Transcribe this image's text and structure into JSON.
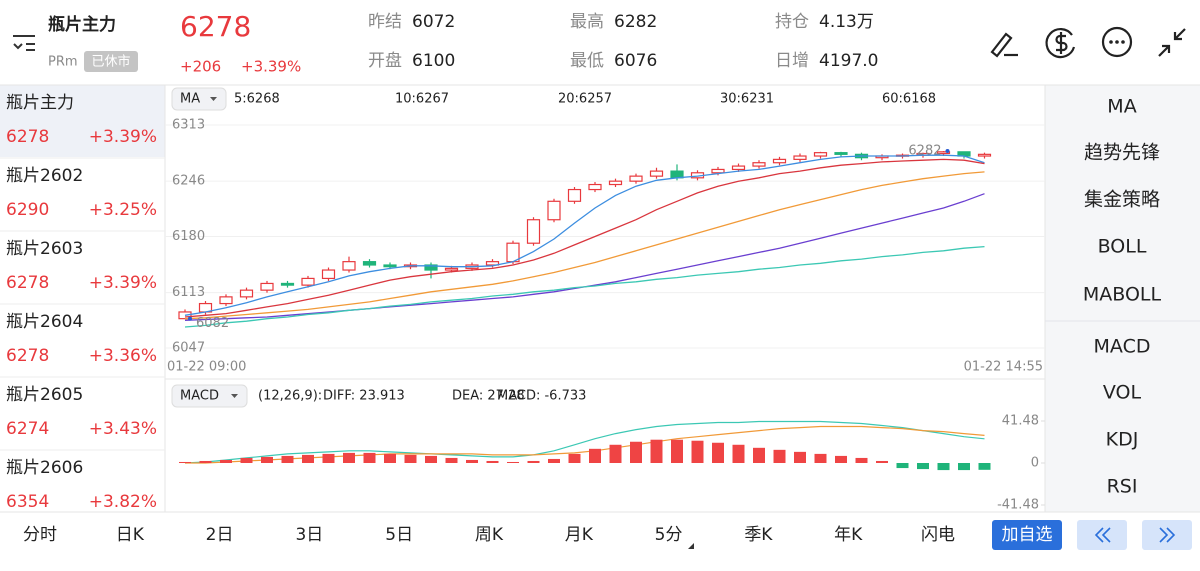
{
  "header": {
    "name": "瓶片主力",
    "code": "PRm",
    "status": "已休市",
    "price": 6278,
    "change": "+206",
    "change_pct": "+3.39%",
    "stats": [
      {
        "label": "昨结",
        "value": 6072,
        "color": "#333333"
      },
      {
        "label": "开盘",
        "value": 6100,
        "color": "#e8393d"
      },
      {
        "label": "最高",
        "value": 6282,
        "color": "#e8393d"
      },
      {
        "label": "最低",
        "value": 6076,
        "color": "#e8393d"
      },
      {
        "label": "持仓",
        "value": "4.13万",
        "color": "#333333"
      },
      {
        "label": "日增",
        "value": "4197.0",
        "color": "#333333"
      }
    ]
  },
  "contracts": [
    {
      "name": "瓶片主力",
      "price": 6278,
      "change_pct": "+3.39%"
    },
    {
      "name": "瓶片2602",
      "price": 6290,
      "change_pct": "+3.25%"
    },
    {
      "name": "瓶片2603",
      "price": 6278,
      "change_pct": "+3.39%"
    },
    {
      "name": "瓶片2604",
      "price": 6278,
      "change_pct": "+3.36%"
    },
    {
      "name": "瓶片2605",
      "price": 6274,
      "change_pct": "+3.43%"
    },
    {
      "name": "瓶片2606",
      "price": 6354,
      "change_pct": "+3.82%"
    }
  ],
  "chart_data": [
    {
      "type": "candlestick",
      "legend_button": "MA",
      "x_labels": [
        "01-22 09:00",
        "01-22 14:55"
      ],
      "up_color": "#e8393d",
      "down_color": "#1fb47a",
      "ylim": [
        6047,
        6313
      ],
      "yticks": [
        6313,
        6246,
        6180,
        6113,
        6047
      ],
      "grid": true,
      "open": [
        6082,
        6090,
        6100,
        6108,
        6116,
        6124,
        6122,
        6130,
        6140,
        6150,
        6146,
        6144,
        6146,
        6140,
        6142,
        6146,
        6150,
        6172,
        6200,
        6222,
        6236,
        6242,
        6246,
        6252,
        6258,
        6250,
        6256,
        6260,
        6264,
        6268,
        6272,
        6276,
        6280,
        6278,
        6274,
        6276,
        6277,
        6279,
        6281,
        6276
      ],
      "high": [
        6093,
        6103,
        6111,
        6119,
        6127,
        6127,
        6133,
        6143,
        6156,
        6153,
        6149,
        6149,
        6149,
        6145,
        6149,
        6153,
        6175,
        6203,
        6225,
        6239,
        6245,
        6249,
        6255,
        6262,
        6266,
        6259,
        6263,
        6267,
        6271,
        6275,
        6279,
        6281,
        6281,
        6280,
        6278,
        6279,
        6280,
        6282,
        6281,
        6280
      ],
      "low": [
        6082,
        6087,
        6097,
        6105,
        6113,
        6119,
        6119,
        6127,
        6137,
        6143,
        6141,
        6141,
        6130,
        6137,
        6139,
        6143,
        6147,
        6169,
        6197,
        6219,
        6233,
        6239,
        6243,
        6249,
        6247,
        6247,
        6253,
        6257,
        6261,
        6265,
        6269,
        6273,
        6275,
        6271,
        6271,
        6273,
        6274,
        6276,
        6273,
        6273
      ],
      "close": [
        6090,
        6100,
        6108,
        6116,
        6124,
        6122,
        6130,
        6140,
        6150,
        6146,
        6144,
        6146,
        6140,
        6142,
        6146,
        6150,
        6172,
        6200,
        6222,
        6236,
        6242,
        6246,
        6252,
        6258,
        6250,
        6256,
        6260,
        6264,
        6268,
        6272,
        6276,
        6280,
        6278,
        6274,
        6276,
        6277,
        6279,
        6281,
        6276,
        6278
      ],
      "series": [
        {
          "name": "5:6268",
          "color": "#3d8ee0",
          "values": [
            6086,
            6090,
            6095,
            6101,
            6108,
            6114,
            6120,
            6126,
            6133,
            6138,
            6142,
            6145,
            6145,
            6144,
            6144,
            6145,
            6150,
            6162,
            6177,
            6196,
            6214,
            6229,
            6240,
            6247,
            6250,
            6252,
            6255,
            6258,
            6260,
            6264,
            6268,
            6272,
            6275,
            6276,
            6276,
            6276,
            6277,
            6277,
            6276,
            6268
          ]
        },
        {
          "name": "10:6267",
          "color": "#d9363e",
          "values": [
            6084,
            6086,
            6088,
            6092,
            6096,
            6100,
            6105,
            6110,
            6116,
            6122,
            6128,
            6132,
            6135,
            6138,
            6140,
            6142,
            6146,
            6152,
            6160,
            6170,
            6180,
            6190,
            6200,
            6212,
            6222,
            6232,
            6240,
            6246,
            6250,
            6255,
            6258,
            6262,
            6265,
            6267,
            6269,
            6270,
            6271,
            6272,
            6271,
            6267
          ]
        },
        {
          "name": "20:6257",
          "color": "#f19a38",
          "values": [
            6082,
            6083,
            6085,
            6087,
            6089,
            6091,
            6093,
            6096,
            6099,
            6102,
            6106,
            6110,
            6114,
            6117,
            6120,
            6123,
            6127,
            6132,
            6137,
            6143,
            6149,
            6156,
            6163,
            6170,
            6177,
            6184,
            6191,
            6198,
            6205,
            6212,
            6218,
            6224,
            6230,
            6236,
            6241,
            6245,
            6249,
            6252,
            6255,
            6257
          ]
        },
        {
          "name": "30:6231",
          "color": "#6a3fd0",
          "values": [
            6080,
            6081,
            6082,
            6083,
            6084,
            6086,
            6088,
            6090,
            6092,
            6094,
            6096,
            6098,
            6100,
            6102,
            6104,
            6106,
            6108,
            6111,
            6114,
            6118,
            6122,
            6126,
            6131,
            6136,
            6141,
            6146,
            6151,
            6156,
            6161,
            6166,
            6172,
            6178,
            6184,
            6190,
            6196,
            6202,
            6208,
            6214,
            6222,
            6231
          ]
        },
        {
          "name": "60:6168",
          "color": "#3cc8b4",
          "values": [
            6072,
            6074,
            6077,
            6079,
            6082,
            6084,
            6087,
            6089,
            6092,
            6094,
            6097,
            6099,
            6102,
            6104,
            6106,
            6109,
            6111,
            6114,
            6116,
            6119,
            6121,
            6124,
            6126,
            6129,
            6131,
            6134,
            6136,
            6138,
            6141,
            6143,
            6146,
            6148,
            6151,
            6153,
            6156,
            6158,
            6161,
            6163,
            6166,
            6168
          ]
        }
      ]
    },
    {
      "type": "macd",
      "legend_button": "MACD",
      "params": "(12,26,9):",
      "ylim": [
        -41.48,
        41.48
      ],
      "yticks": [
        41.48,
        0,
        -41.48
      ],
      "up_color": "#ef4444",
      "down_color": "#1fb47a",
      "series": [
        {
          "name": "DIFF: 23.913",
          "color": "#3cc8b4",
          "values": [
            0,
            1,
            3,
            5,
            7,
            9,
            10,
            11,
            12,
            12,
            11,
            10,
            9,
            8,
            7,
            6,
            6,
            8,
            12,
            18,
            24,
            29,
            33,
            36,
            38,
            39,
            40,
            40,
            41,
            41,
            41,
            41,
            40,
            39,
            37,
            35,
            32,
            29,
            26,
            23.913
          ]
        },
        {
          "name": "DEA: 27.28",
          "color": "#f19a38",
          "values": [
            0,
            0,
            1,
            2,
            3,
            4,
            5,
            6,
            7,
            8,
            9,
            9,
            9,
            9,
            9,
            8,
            8,
            8,
            9,
            10,
            12,
            15,
            18,
            21,
            24,
            26,
            28,
            30,
            32,
            34,
            35,
            36,
            36,
            36,
            35,
            34,
            32,
            31,
            29,
            27.28
          ]
        },
        {
          "name": "MACD: -6.733",
          "color": "#9b3ed1",
          "kind": "bar",
          "values": [
            1,
            2,
            3,
            5,
            6,
            7,
            8,
            9,
            10,
            10,
            9,
            8,
            7,
            5,
            3,
            2,
            1,
            2,
            4,
            9,
            14,
            18,
            21,
            23,
            23,
            22,
            20,
            18,
            15,
            13,
            11,
            9,
            7,
            5,
            2,
            -5,
            -6,
            -7,
            -7,
            -6.733
          ]
        }
      ]
    }
  ],
  "indicators": {
    "main": [
      "MA",
      "趋势先锋",
      "集金策略",
      "BOLL",
      "MABOLL"
    ],
    "sub": [
      "MACD",
      "VOL",
      "KDJ",
      "RSI"
    ]
  },
  "tabs": [
    "分时",
    "日K",
    "2日",
    "3日",
    "5日",
    "周K",
    "月K",
    "5分",
    "季K",
    "年K",
    "闪电"
  ],
  "add_watchlist": "加自选"
}
